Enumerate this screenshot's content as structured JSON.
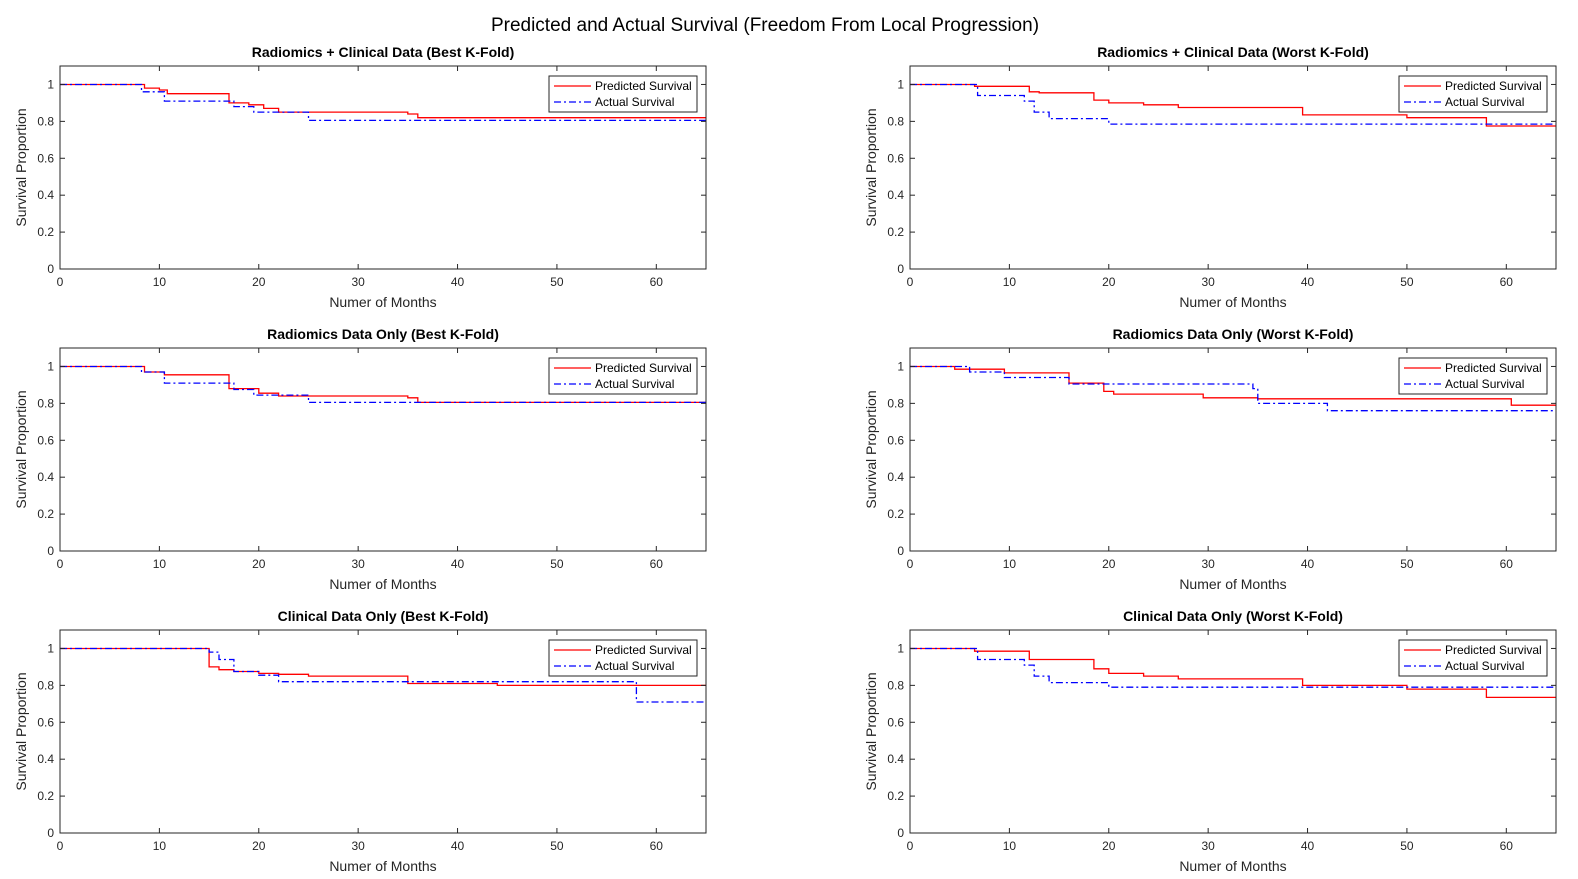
{
  "figure_title": "Predicted and Actual Survival (Freedom From Local Progression)",
  "chart_data": [
    {
      "type": "line",
      "title": "Radiomics + Clinical Data (Best K-Fold)",
      "xlabel": "Numer of Months",
      "ylabel": "Survival Proportion",
      "xlim": [
        0,
        65
      ],
      "ylim": [
        0,
        1.1
      ],
      "xticks": [
        "0",
        "10",
        "20",
        "30",
        "40",
        "50",
        "60"
      ],
      "yticks": [
        "0",
        "0.2",
        "0.4",
        "0.6",
        "0.8",
        "1"
      ],
      "grid": false,
      "legend_position": "top-right",
      "series": [
        {
          "name": "Predicted Survival",
          "style": "solid",
          "color": "#ff0000",
          "x": [
            0,
            8.5,
            10,
            10.8,
            17,
            19,
            20.5,
            22,
            35,
            36,
            65
          ],
          "y": [
            1,
            0.98,
            0.97,
            0.95,
            0.9,
            0.89,
            0.87,
            0.85,
            0.84,
            0.82,
            0.82
          ]
        },
        {
          "name": "Actual Survival",
          "style": "dashdot",
          "color": "#0000ff",
          "x": [
            0,
            8.2,
            10.5,
            17.5,
            19.5,
            25,
            65
          ],
          "y": [
            1,
            0.96,
            0.91,
            0.88,
            0.85,
            0.805,
            0.795
          ]
        }
      ]
    },
    {
      "type": "line",
      "title": "Radiomics + Clinical Data (Worst K-Fold)",
      "xlabel": "Numer of Months",
      "ylabel": "Survival Proportion",
      "xlim": [
        0,
        65
      ],
      "ylim": [
        0,
        1.1
      ],
      "xticks": [
        "0",
        "10",
        "20",
        "30",
        "40",
        "50",
        "60"
      ],
      "yticks": [
        "0",
        "0.2",
        "0.4",
        "0.6",
        "0.8",
        "1"
      ],
      "grid": false,
      "legend_position": "top-right",
      "series": [
        {
          "name": "Predicted Survival",
          "style": "solid",
          "color": "#ff0000",
          "x": [
            0,
            6.5,
            12,
            13,
            18.5,
            20,
            23.5,
            27,
            39.5,
            50,
            58,
            65
          ],
          "y": [
            1,
            0.99,
            0.96,
            0.955,
            0.915,
            0.9,
            0.89,
            0.875,
            0.835,
            0.82,
            0.775,
            0.775
          ]
        },
        {
          "name": "Actual Survival",
          "style": "dashdot",
          "color": "#0000ff",
          "x": [
            0,
            6.8,
            11.5,
            12.5,
            14,
            20,
            65
          ],
          "y": [
            1,
            0.94,
            0.91,
            0.85,
            0.815,
            0.785,
            0.785
          ]
        }
      ]
    },
    {
      "type": "line",
      "title": "Radiomics Data Only (Best K-Fold)",
      "xlabel": "Numer of Months",
      "ylabel": "Survival Proportion",
      "xlim": [
        0,
        65
      ],
      "ylim": [
        0,
        1.1
      ],
      "xticks": [
        "0",
        "10",
        "20",
        "30",
        "40",
        "50",
        "60"
      ],
      "yticks": [
        "0",
        "0.2",
        "0.4",
        "0.6",
        "0.8",
        "1"
      ],
      "grid": false,
      "legend_position": "top-right",
      "series": [
        {
          "name": "Predicted Survival",
          "style": "solid",
          "color": "#ff0000",
          "x": [
            0,
            8.5,
            10.5,
            17,
            20,
            22,
            35,
            36,
            65
          ],
          "y": [
            1,
            0.97,
            0.955,
            0.88,
            0.855,
            0.84,
            0.83,
            0.805,
            0.805
          ]
        },
        {
          "name": "Actual Survival",
          "style": "dashdot",
          "color": "#0000ff",
          "x": [
            0,
            8.2,
            10.5,
            17.5,
            19.5,
            25,
            65
          ],
          "y": [
            1,
            0.97,
            0.91,
            0.875,
            0.845,
            0.805,
            0.8
          ]
        }
      ]
    },
    {
      "type": "line",
      "title": "Radiomics Data Only (Worst K-Fold)",
      "xlabel": "Numer of Months",
      "ylabel": "Survival Proportion",
      "xlim": [
        0,
        65
      ],
      "ylim": [
        0,
        1.1
      ],
      "xticks": [
        "0",
        "10",
        "20",
        "30",
        "40",
        "50",
        "60"
      ],
      "yticks": [
        "0",
        "0.2",
        "0.4",
        "0.6",
        "0.8",
        "1"
      ],
      "grid": false,
      "legend_position": "top-right",
      "series": [
        {
          "name": "Predicted Survival",
          "style": "solid",
          "color": "#ff0000",
          "x": [
            0,
            4.5,
            9.5,
            16,
            19.5,
            20.5,
            29.5,
            35,
            60.5,
            65
          ],
          "y": [
            1,
            0.985,
            0.965,
            0.91,
            0.865,
            0.85,
            0.83,
            0.825,
            0.79,
            0.79
          ]
        },
        {
          "name": "Actual Survival",
          "style": "dashdot",
          "color": "#0000ff",
          "x": [
            0,
            6,
            9.5,
            16,
            34.5,
            35,
            42,
            65
          ],
          "y": [
            1,
            0.97,
            0.94,
            0.905,
            0.88,
            0.8,
            0.76,
            0.76
          ]
        }
      ]
    },
    {
      "type": "line",
      "title": "Clinical Data Only (Best K-Fold)",
      "xlabel": "Numer of Months",
      "ylabel": "Survival Proportion",
      "xlim": [
        0,
        65
      ],
      "ylim": [
        0,
        1.1
      ],
      "xticks": [
        "0",
        "10",
        "20",
        "30",
        "40",
        "50",
        "60"
      ],
      "yticks": [
        "0",
        "0.2",
        "0.4",
        "0.6",
        "0.8",
        "1"
      ],
      "grid": false,
      "legend_position": "top-right",
      "series": [
        {
          "name": "Predicted Survival",
          "style": "solid",
          "color": "#ff0000",
          "x": [
            0,
            15,
            16,
            17.5,
            20,
            22,
            25,
            35,
            44,
            65
          ],
          "y": [
            1,
            0.9,
            0.885,
            0.875,
            0.865,
            0.86,
            0.85,
            0.81,
            0.8,
            0.8
          ]
        },
        {
          "name": "Actual Survival",
          "style": "dashdot",
          "color": "#0000ff",
          "x": [
            0,
            15,
            16,
            17.5,
            20,
            22,
            35,
            58,
            65
          ],
          "y": [
            1,
            0.98,
            0.94,
            0.875,
            0.855,
            0.82,
            0.82,
            0.71,
            0.71
          ]
        }
      ]
    },
    {
      "type": "line",
      "title": "Clinical Data Only (Worst K-Fold)",
      "xlabel": "Numer of Months",
      "ylabel": "Survival Proportion",
      "xlim": [
        0,
        65
      ],
      "ylim": [
        0,
        1.1
      ],
      "xticks": [
        "0",
        "10",
        "20",
        "30",
        "40",
        "50",
        "60"
      ],
      "yticks": [
        "0",
        "0.2",
        "0.4",
        "0.6",
        "0.8",
        "1"
      ],
      "grid": false,
      "legend_position": "top-right",
      "series": [
        {
          "name": "Predicted Survival",
          "style": "solid",
          "color": "#ff0000",
          "x": [
            0,
            6.5,
            12,
            18.5,
            20,
            23.5,
            27,
            39.5,
            50,
            58,
            65
          ],
          "y": [
            1,
            0.985,
            0.94,
            0.89,
            0.865,
            0.85,
            0.835,
            0.8,
            0.78,
            0.735,
            0.735
          ]
        },
        {
          "name": "Actual Survival",
          "style": "dashdot",
          "color": "#0000ff",
          "x": [
            0,
            6.8,
            11.5,
            12.5,
            14,
            20,
            65
          ],
          "y": [
            1,
            0.94,
            0.91,
            0.85,
            0.815,
            0.79,
            0.79
          ]
        }
      ]
    }
  ]
}
